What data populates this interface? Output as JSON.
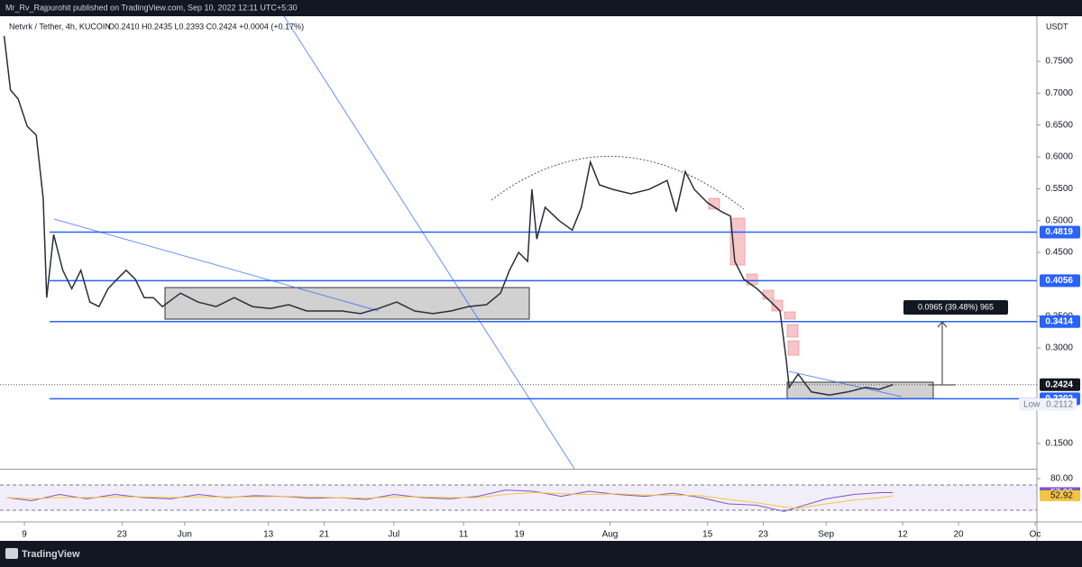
{
  "header": {
    "text": "Mr_Rv_Rajpurohit published on TradingView.com, Sep 10, 2022 12:11 UTC+5:30"
  },
  "footer": {
    "brand": "TradingView"
  },
  "chart_data": [
    {
      "type": "line",
      "title": "Netvrk / Tether, 4h, KUCOIN",
      "legend": "O0.2410 H0.2435 L0.2393 C0.2424 +0.0004 (+0.17%)",
      "currency": "USDT",
      "x": [
        126.1,
        127.0,
        128.1,
        129.4,
        130.7,
        131.7,
        132.2,
        133.2,
        134.5,
        135.8,
        137.1,
        138.4,
        139.7,
        141.0,
        142.3,
        143.6,
        144.9,
        146.2,
        147.5,
        148.8,
        151.4,
        153.9,
        156.5,
        159.1,
        161.7,
        164.3,
        166.9,
        169.5,
        172.1,
        174.6,
        177.2,
        179.8,
        182.4,
        185.0,
        187.6,
        190.2,
        192.7,
        195.3,
        197.3,
        198.6,
        199.9,
        201.2,
        201.8,
        202.5,
        203.7,
        205.7,
        207.6,
        208.9,
        210.2,
        211.5,
        213.4,
        216.0,
        218.6,
        221.2,
        222.5,
        223.8,
        225.1,
        227.0,
        229.0,
        230.3,
        230.9,
        232.2,
        234.1,
        236.1,
        237.4,
        238.3,
        238.7,
        240.0,
        241.9,
        244.5,
        247.1,
        249.7,
        251.6,
        253.6
      ],
      "series": [
        {
          "color": "#2a2e39",
          "values": [
            0.79,
            0.705,
            0.691,
            0.648,
            0.634,
            0.535,
            0.379,
            0.478,
            0.422,
            0.393,
            0.422,
            0.372,
            0.365,
            0.393,
            0.408,
            0.422,
            0.408,
            0.379,
            0.379,
            0.365,
            0.386,
            0.372,
            0.365,
            0.379,
            0.365,
            0.362,
            0.368,
            0.358,
            0.358,
            0.358,
            0.354,
            0.362,
            0.372,
            0.358,
            0.354,
            0.358,
            0.365,
            0.368,
            0.386,
            0.422,
            0.45,
            0.436,
            0.549,
            0.471,
            0.521,
            0.5,
            0.485,
            0.521,
            0.592,
            0.556,
            0.549,
            0.542,
            0.549,
            0.563,
            0.514,
            0.577,
            0.549,
            0.528,
            0.514,
            0.507,
            0.436,
            0.408,
            0.393,
            0.372,
            0.358,
            0.28,
            0.238,
            0.259,
            0.231,
            0.226,
            0.231,
            0.238,
            0.235,
            0.2424
          ]
        }
      ],
      "xlim": [
        125.5,
        274.25
      ],
      "xticks": [
        {
          "value": 129,
          "label": "9"
        },
        {
          "value": 143,
          "label": "23"
        },
        {
          "value": 152,
          "label": "Jun"
        },
        {
          "value": 164,
          "label": "13"
        },
        {
          "value": 172,
          "label": "21"
        },
        {
          "value": 182,
          "label": "Jul"
        },
        {
          "value": 192,
          "label": "11"
        },
        {
          "value": 200,
          "label": "19"
        },
        {
          "value": 213,
          "label": "Aug"
        },
        {
          "value": 227,
          "label": "15"
        },
        {
          "value": 235,
          "label": "23"
        },
        {
          "value": 244,
          "label": "Sep"
        },
        {
          "value": 255,
          "label": "12"
        },
        {
          "value": 263,
          "label": "20"
        },
        {
          "value": 274,
          "label": "Oc"
        }
      ],
      "ylim": [
        0.1104,
        0.8208
      ],
      "yticks": [
        {
          "value": 0.15,
          "label": "0.1500"
        },
        {
          "value": 0.3,
          "label": "0.3000"
        },
        {
          "value": 0.35,
          "label": "0.3500"
        },
        {
          "value": 0.45,
          "label": "0.4500"
        },
        {
          "value": 0.5,
          "label": "0.5000"
        },
        {
          "value": 0.55,
          "label": "0.5500"
        },
        {
          "value": 0.6,
          "label": "0.6000"
        },
        {
          "value": 0.65,
          "label": "0.6500"
        },
        {
          "value": 0.7,
          "label": "0.7000"
        },
        {
          "value": 0.75,
          "label": "0.7500"
        }
      ],
      "levels": [
        0.4819,
        0.4056,
        0.3414,
        0.2202
      ],
      "level_color": "#2962ff",
      "low": {
        "label": "Low",
        "value": 0.2112
      },
      "annotation": "0.0965 (39.48%) 965"
    },
    {
      "type": "line",
      "x": [
        126.5,
        130,
        134,
        138,
        142,
        146,
        150,
        154,
        158,
        162,
        166,
        170,
        174,
        178,
        182,
        186,
        190,
        194,
        198,
        202,
        206,
        210,
        214,
        218,
        222,
        226,
        230,
        234,
        238,
        240,
        244,
        248,
        252,
        253.6
      ],
      "series": [
        {
          "color": "#7e57c2",
          "values": [
            50,
            45,
            55,
            48,
            55,
            50,
            48,
            55,
            50,
            53,
            52,
            49,
            50,
            47,
            55,
            50,
            48,
            52,
            62,
            60,
            52,
            60,
            55,
            52,
            57,
            50,
            40,
            38,
            28,
            35,
            48,
            55,
            58,
            57.92
          ]
        },
        {
          "color": "#f5c542",
          "values": [
            50,
            48,
            50,
            50,
            51,
            51,
            50,
            51,
            51,
            51,
            52,
            51,
            50,
            49,
            51,
            51,
            50,
            50,
            55,
            58,
            56,
            55,
            56,
            54,
            54,
            53,
            47,
            42,
            35,
            33,
            40,
            46,
            50,
            52.92
          ]
        }
      ],
      "xlim": [
        125.5,
        274.25
      ],
      "ylim": [
        12.9,
        92.9
      ],
      "yticks": [
        {
          "value": 80,
          "label": "80.00"
        }
      ],
      "bands": [
        30,
        70
      ]
    }
  ]
}
